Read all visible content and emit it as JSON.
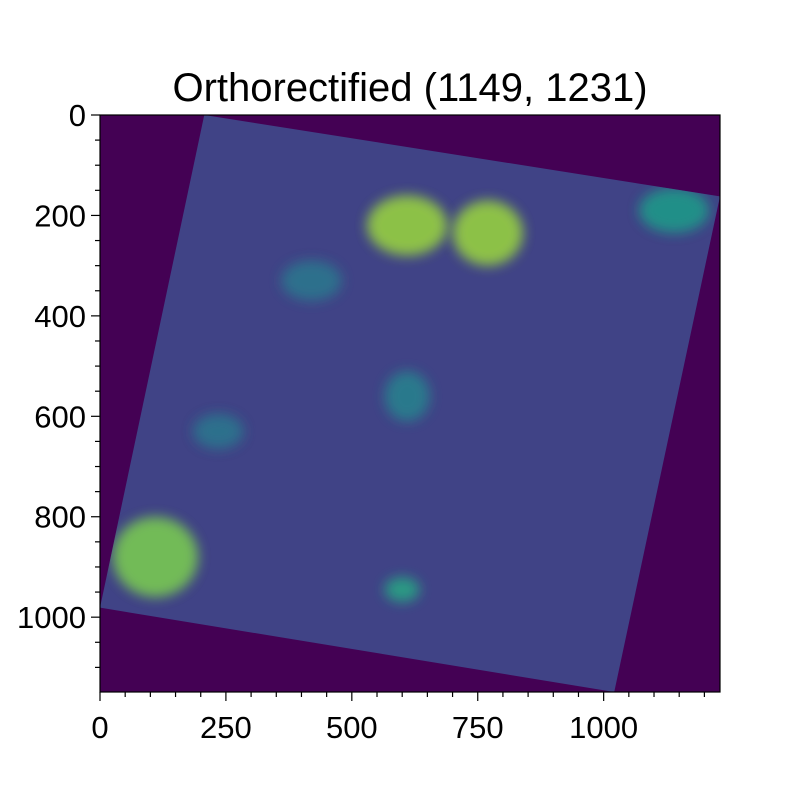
{
  "chart_data": {
    "type": "heatmap",
    "title": "Orthorectified (1149, 1231)",
    "image_shape": [
      1149,
      1231
    ],
    "xlim": [
      0,
      1231
    ],
    "ylim": [
      1149,
      0
    ],
    "x_ticks": [
      0,
      250,
      500,
      750,
      1000
    ],
    "y_ticks": [
      0,
      200,
      400,
      600,
      800,
      1000
    ],
    "x_tick_labels": [
      "0",
      "250",
      "500",
      "750",
      "1000"
    ],
    "y_tick_labels": [
      "0",
      "200",
      "400",
      "600",
      "800",
      "1000"
    ],
    "xlabel": "",
    "ylabel": "",
    "colormap": "viridis",
    "grid": false,
    "nodata_color": "#440154",
    "footprint_corners": [
      [
        207,
        0
      ],
      [
        1231,
        162
      ],
      [
        1021,
        1149
      ],
      [
        0,
        981
      ]
    ],
    "bright_regions": [
      {
        "x": 610,
        "y": 220,
        "rx": 80,
        "ry": 60,
        "level": 0.85
      },
      {
        "x": 770,
        "y": 235,
        "rx": 70,
        "ry": 65,
        "level": 0.85
      },
      {
        "x": 110,
        "y": 880,
        "rx": 85,
        "ry": 80,
        "level": 0.8
      },
      {
        "x": 600,
        "y": 945,
        "rx": 35,
        "ry": 25,
        "level": 0.6
      },
      {
        "x": 1140,
        "y": 190,
        "rx": 70,
        "ry": 45,
        "level": 0.55
      },
      {
        "x": 610,
        "y": 560,
        "rx": 45,
        "ry": 50,
        "level": 0.45
      },
      {
        "x": 235,
        "y": 630,
        "rx": 50,
        "ry": 35,
        "level": 0.4
      },
      {
        "x": 420,
        "y": 330,
        "rx": 60,
        "ry": 40,
        "level": 0.4
      }
    ]
  }
}
